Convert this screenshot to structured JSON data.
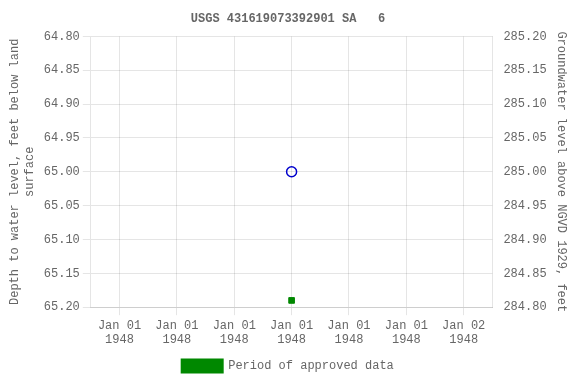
{
  "chart_data": {
    "type": "scatter",
    "title": "USGS 431619073392901 SA   6",
    "categories": [
      "Jan 01\n1948",
      "Jan 01\n1948",
      "Jan 01\n1948",
      "Jan 01\n1948",
      "Jan 01\n1948",
      "Jan 01\n1948",
      "Jan 02\n1948"
    ],
    "y_label": "Depth to water level, feet below land\nsurface",
    "y2_label": "Groundwater level above NGVD 1929, feet",
    "ylim": [
      65.2,
      64.8
    ],
    "yticks": [
      {
        "value": 64.8,
        "label": "64.80"
      },
      {
        "value": 64.85,
        "label": "64.85"
      },
      {
        "value": 64.9,
        "label": "64.90"
      },
      {
        "value": 64.95,
        "label": "64.95"
      },
      {
        "value": 65.0,
        "label": "65.00"
      },
      {
        "value": 65.05,
        "label": "65.05"
      },
      {
        "value": 65.1,
        "label": "65.10"
      },
      {
        "value": 65.15,
        "label": "65.15"
      },
      {
        "value": 65.2,
        "label": "65.20"
      }
    ],
    "y2lim": [
      284.8,
      285.2
    ],
    "y2ticks": [
      {
        "value": 285.2,
        "label": "285.20"
      },
      {
        "value": 285.15,
        "label": "285.15"
      },
      {
        "value": 285.1,
        "label": "285.10"
      },
      {
        "value": 285.05,
        "label": "285.05"
      },
      {
        "value": 285.0,
        "label": "285.00"
      },
      {
        "value": 284.95,
        "label": "284.95"
      },
      {
        "value": 284.9,
        "label": "284.90"
      },
      {
        "value": 284.85,
        "label": "284.85"
      },
      {
        "value": 284.8,
        "label": "284.80"
      }
    ],
    "series": [
      {
        "color": "#0000cc",
        "marker": "circle_open",
        "values": [
          null,
          null,
          null,
          65.0,
          null,
          null,
          null
        ]
      },
      {
        "name": "Period of approved data",
        "color": "#008800",
        "marker": "square",
        "values": [
          null,
          null,
          null,
          65.19,
          null,
          null,
          null
        ]
      }
    ],
    "grid": true,
    "legend": "bottom"
  }
}
